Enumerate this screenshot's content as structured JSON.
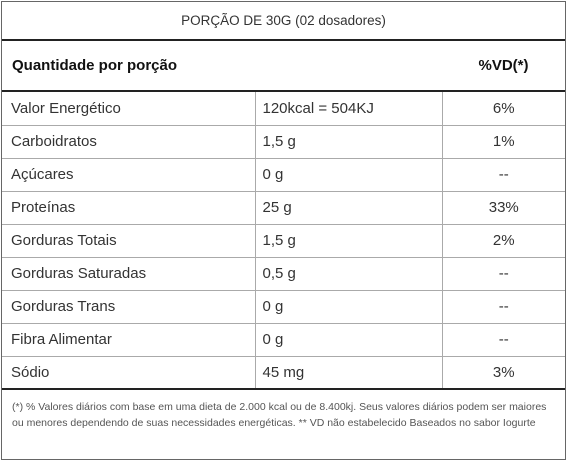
{
  "serving": "PORÇÃO DE 30G (02 dosadores)",
  "header": {
    "label": "Quantidade por porção",
    "vd": "%VD(*)"
  },
  "rows": [
    {
      "name": "Valor Energético",
      "amount": "120kcal = 504KJ",
      "vd": "6%"
    },
    {
      "name": "Carboidratos",
      "amount": "1,5 g",
      "vd": "1%"
    },
    {
      "name": "Açúcares",
      "amount": "0 g",
      "vd": "--"
    },
    {
      "name": "Proteínas",
      "amount": "25 g",
      "vd": "33%"
    },
    {
      "name": "Gorduras Totais",
      "amount": "1,5 g",
      "vd": "2%"
    },
    {
      "name": "Gorduras Saturadas",
      "amount": "0,5 g",
      "vd": "--"
    },
    {
      "name": "Gorduras Trans",
      "amount": "0 g",
      "vd": "--"
    },
    {
      "name": "Fibra Alimentar",
      "amount": "0 g",
      "vd": "--"
    },
    {
      "name": "Sódio",
      "amount": "45 mg",
      "vd": "3%"
    }
  ],
  "footnote": "(*) % Valores diários com base em uma dieta de 2.000 kcal ou de 8.400kj. Seus valores diários podem ser maiores ou menores dependendo de suas necessidades energéticas. ** VD não estabelecido Baseados no sabor Iogurte"
}
